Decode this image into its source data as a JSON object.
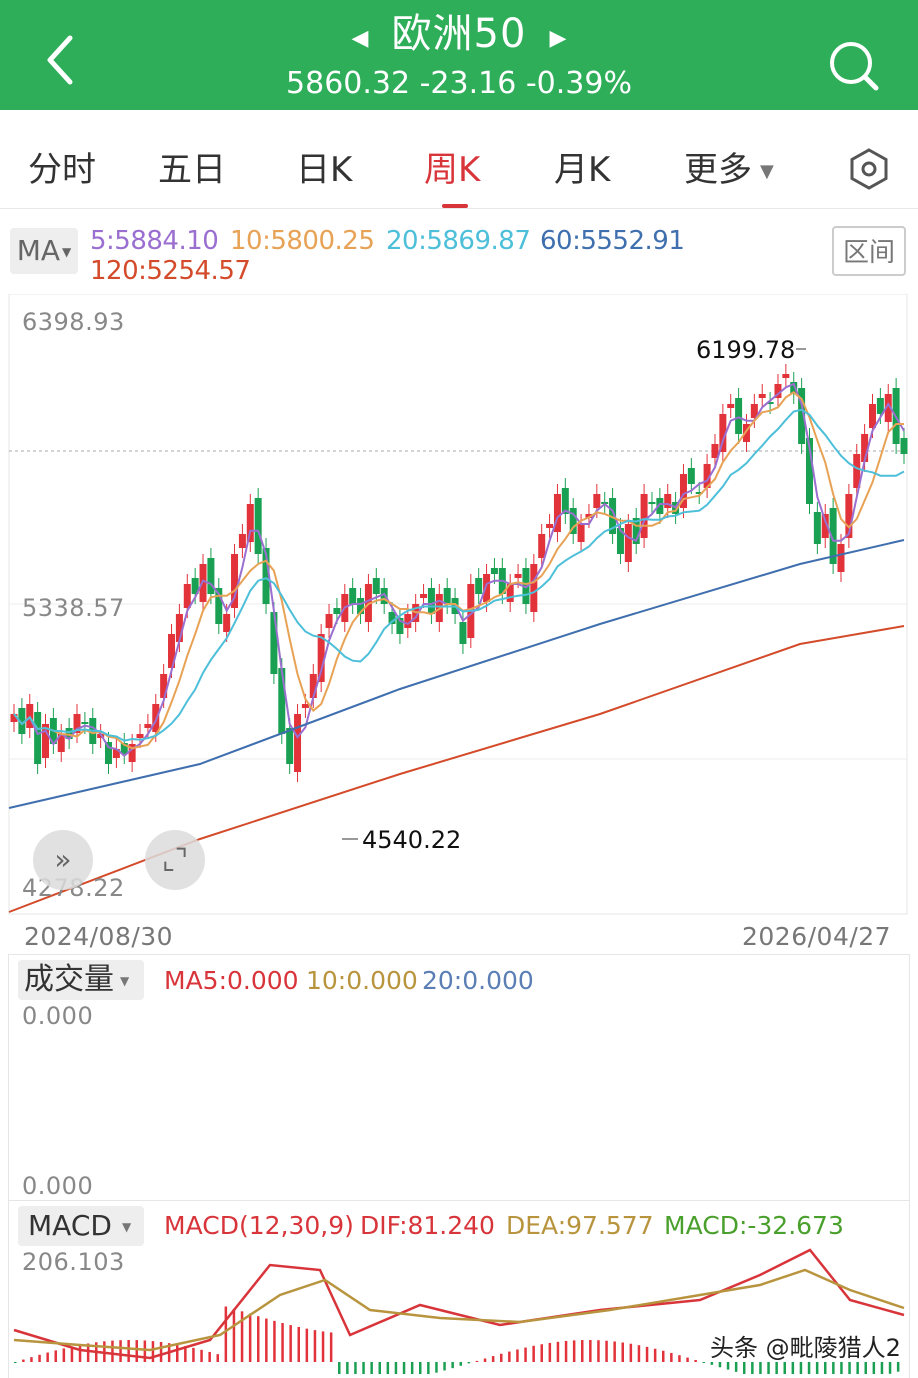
{
  "header": {
    "title": "欧洲50",
    "back_icon": "chevron-left-icon",
    "search_icon": "search-icon",
    "prev_icon": "triangle-left-icon",
    "next_icon": "triangle-right-icon",
    "quote": "5860.32 -23.16 -0.39%",
    "bg_color": "#2fae5a"
  },
  "tabs": [
    {
      "label": "分时",
      "active": false
    },
    {
      "label": "五日",
      "active": false
    },
    {
      "label": "日K",
      "active": false
    },
    {
      "label": "周K",
      "active": true
    },
    {
      "label": "月K",
      "active": false
    },
    {
      "label": "更多",
      "active": false
    }
  ],
  "tabs_more_icon": "caret-down-icon",
  "settings_icon": "gear-hexagon-icon",
  "ma": {
    "button": "MA",
    "ma5": "5:5884.10",
    "ma10": "10:5800.25",
    "ma20": "20:5869.87",
    "ma60": "60:5552.91",
    "ma120": "120:5254.57",
    "colors": {
      "ma5": "#9a6fd0",
      "ma10": "#e8a255",
      "ma20": "#4dbfd9",
      "ma60": "#3f6fae",
      "ma120": "#d34b2a"
    },
    "range_button": "区间"
  },
  "price_axis": {
    "top": "6398.93",
    "mid": "5338.57",
    "bottom": "4278.22",
    "start_date": "2024/08/30",
    "end_date": "2026/04/27",
    "high_label": "6199.78",
    "low_label": "4540.22"
  },
  "chart_data": {
    "type": "candlestick",
    "ylim": [
      4278.22,
      6398.93
    ],
    "up_color": "#e2323a",
    "down_color": "#1aa052",
    "high": 6199.78,
    "low": 4540.22,
    "last_price": 5860.32
  },
  "volume": {
    "button": "成交量",
    "ma5": "MA5:0.000",
    "ma10": "10:0.000",
    "ma20": "20:0.000",
    "top": "0.000",
    "bottom": "0.000"
  },
  "macd": {
    "button": "MACD",
    "params": "MACD(12,30,9)",
    "dif": "DIF:81.240",
    "dea": "DEA:97.577",
    "value": "MACD:-32.673",
    "top": "206.103"
  },
  "expand_icon": "double-chevron-right-icon",
  "fullscreen_icon": "fullscreen-corners-icon",
  "watermark": "头条 @毗陵猎人2"
}
